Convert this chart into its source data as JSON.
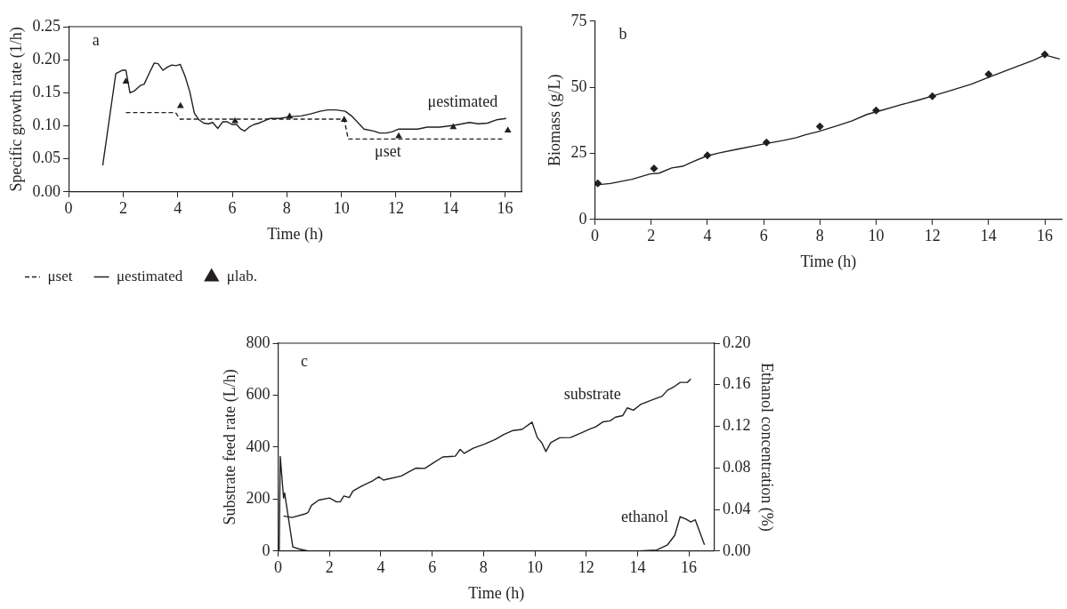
{
  "chart_data": [
    {
      "type": "line",
      "xlabel": "Time (h)",
      "ylabel": "Specific growth rate (1/h)",
      "xlim": [
        0,
        16.6
      ],
      "xticks": [
        0,
        2,
        4,
        6,
        8,
        10,
        12,
        14,
        16
      ],
      "ylim": [
        0,
        0.25
      ],
      "yticks": [
        {
          "value": 0,
          "label": "0.00"
        },
        0.05,
        {
          "value": 0.1,
          "label": "0.10"
        },
        0.15,
        {
          "value": 0.2,
          "label": "0.20"
        },
        0.25
      ],
      "legend": "bottom",
      "annotations": [
        "a",
        "μestimated",
        "μset"
      ],
      "series": [
        {
          "name": "μset",
          "type": "line",
          "color": "#231f20",
          "line_style": "dashed",
          "marker": "none",
          "x": [
            2.1,
            3.92,
            4.09,
            10.1,
            10.25,
            15.96
          ],
          "values": [
            0.12,
            0.12,
            0.11,
            0.11,
            0.08,
            0.08
          ]
        },
        {
          "name": "μestimated",
          "type": "line",
          "color": "#231f20",
          "line_style": "solid",
          "marker": "none",
          "x": [
            1.25,
            1.73,
            1.96,
            2.1,
            2.25,
            2.42,
            2.63,
            2.77,
            2.96,
            3.14,
            3.28,
            3.46,
            3.63,
            3.78,
            3.94,
            4.09,
            4.26,
            4.44,
            4.61,
            4.78,
            4.95,
            5.13,
            5.28,
            5.47,
            5.65,
            5.82,
            5.99,
            6.16,
            6.31,
            6.45,
            6.62,
            6.8,
            6.97,
            7.14,
            7.37,
            7.72,
            8.18,
            8.53,
            8.87,
            9.22,
            9.5,
            9.8,
            10.14,
            10.37,
            10.83,
            11.18,
            11.4,
            11.64,
            11.87,
            12.1,
            12.79,
            13.14,
            13.6,
            14.17,
            14.69,
            15.02,
            15.35,
            15.68,
            16.04
          ],
          "values": [
            0.04,
            0.179,
            0.184,
            0.184,
            0.15,
            0.153,
            0.161,
            0.163,
            0.18,
            0.195,
            0.194,
            0.184,
            0.189,
            0.192,
            0.191,
            0.193,
            0.176,
            0.152,
            0.119,
            0.109,
            0.104,
            0.103,
            0.105,
            0.096,
            0.106,
            0.106,
            0.102,
            0.102,
            0.095,
            0.092,
            0.098,
            0.102,
            0.104,
            0.107,
            0.111,
            0.111,
            0.114,
            0.115,
            0.118,
            0.122,
            0.124,
            0.124,
            0.122,
            0.115,
            0.095,
            0.092,
            0.089,
            0.089,
            0.091,
            0.095,
            0.095,
            0.098,
            0.098,
            0.101,
            0.105,
            0.103,
            0.104,
            0.109,
            0.111
          ]
        },
        {
          "name": "μlab.",
          "type": "scatter",
          "color": "#231f20",
          "marker": "triangle",
          "x": [
            2.1,
            4.1,
            6.1,
            8.1,
            10.1,
            12.1,
            14.1,
            16.1
          ],
          "values": [
            0.167,
            0.13,
            0.107,
            0.114,
            0.109,
            0.084,
            0.098,
            0.093
          ]
        }
      ]
    },
    {
      "type": "line",
      "xlabel": "Time (h)",
      "ylabel": "Biomass (g/L)",
      "xlim": [
        0,
        16.6
      ],
      "xticks": [
        0,
        2,
        4,
        6,
        8,
        10,
        12,
        14,
        16
      ],
      "ylim": [
        0,
        75
      ],
      "yticks": [
        0,
        25,
        50,
        75
      ],
      "annotations": [
        "b"
      ],
      "series": [
        {
          "type": "line",
          "color": "#231f20",
          "marker": "none",
          "x": [
            0,
            0.55,
            1.32,
            1.96,
            2.28,
            2.73,
            3.12,
            3.5,
            3.95,
            4.4,
            5.04,
            5.94,
            6.71,
            7.16,
            7.48,
            7.93,
            8.57,
            9.15,
            9.67,
            10.18,
            10.82,
            11.46,
            12.1,
            12.75,
            13.39,
            14.03,
            14.67,
            15.19,
            15.57,
            16.0,
            16.21,
            16.53
          ],
          "values": [
            13.0,
            13.6,
            15.2,
            17.2,
            17.5,
            19.5,
            20.1,
            21.9,
            23.9,
            25.1,
            26.5,
            28.4,
            29.9,
            30.9,
            32.0,
            33.2,
            35.3,
            37.3,
            39.7,
            41.2,
            43.2,
            45.0,
            47.0,
            49.1,
            51.2,
            53.9,
            56.5,
            58.6,
            60.1,
            62.2,
            61.6,
            60.7
          ]
        },
        {
          "type": "scatter",
          "color": "#231f20",
          "marker": "diamond",
          "x": [
            0.1,
            2.1,
            4.0,
            6.1,
            8.0,
            10.0,
            12.0,
            14.0,
            16.0
          ],
          "values": [
            13.6,
            19.3,
            24.2,
            29.1,
            35.2,
            41.2,
            46.6,
            54.9,
            62.4
          ]
        }
      ]
    },
    {
      "type": "line",
      "xlabel": "Time (h)",
      "ylabel": "Substrate feed rate (L/h)",
      "y2label": "Ethanol concentration (%)",
      "xlim": [
        0,
        17
      ],
      "xticks": [
        0,
        2,
        4,
        6,
        8,
        10,
        12,
        14,
        16
      ],
      "ylim": [
        0,
        800
      ],
      "yticks": [
        0,
        200,
        400,
        600,
        800
      ],
      "y2lim": [
        0,
        0.2
      ],
      "y2ticks": [
        {
          "value": 0,
          "label": "0.00"
        },
        0.04,
        0.08,
        0.12,
        0.16,
        {
          "value": 0.2,
          "label": "0.20"
        }
      ],
      "annotations": [
        "c",
        "substrate",
        "ethanol"
      ],
      "series": [
        {
          "type": "line",
          "color": "#231f20",
          "marker": "none",
          "x": [
            0.21,
            0.53,
            1.02,
            1.16,
            1.3,
            1.58,
            2.0,
            2.28,
            2.42,
            2.56,
            2.77,
            2.91,
            3.26,
            3.68,
            3.92,
            4.1,
            4.8,
            5.08,
            5.36,
            5.71,
            6.06,
            6.41,
            6.9,
            7.09,
            7.25,
            7.6,
            8.03,
            8.45,
            8.8,
            9.15,
            9.5,
            9.89,
            10.1,
            10.27,
            10.43,
            10.62,
            10.97,
            11.39,
            11.81,
            12.16,
            12.37,
            12.65,
            12.93,
            13.14,
            13.42,
            13.6,
            13.84,
            14.12,
            14.61,
            14.96,
            15.17,
            15.45,
            15.66,
            15.94,
            16.08
          ],
          "values": [
            135,
            129,
            142,
            148,
            176,
            196,
            204,
            189,
            190,
            212,
            206,
            231,
            250,
            270,
            286,
            273,
            289,
            304,
            319,
            318,
            340,
            362,
            365,
            391,
            376,
            396,
            411,
            429,
            449,
            464,
            468,
            496,
            436,
            417,
            383,
            417,
            436,
            437,
            455,
            470,
            478,
            497,
            501,
            515,
            521,
            551,
            542,
            564,
            583,
            596,
            619,
            634,
            649,
            649,
            662
          ]
        },
        {
          "type": "line",
          "axis": "y2",
          "color": "#231f20",
          "marker": "none",
          "x": [
            0.04,
            0.08,
            0.21,
            0.25,
            0.57,
            0.81,
            1.16,
            14.05,
            14.75,
            15.17,
            15.45,
            15.66,
            15.87,
            16.08,
            16.25,
            16.61
          ],
          "values": [
            0,
            0.091,
            0.051,
            0.056,
            0.004,
            0.002,
            0,
            0,
            0.001,
            0.006,
            0.015,
            0.033,
            0.031,
            0.028,
            0.03,
            0.006
          ]
        }
      ]
    }
  ]
}
